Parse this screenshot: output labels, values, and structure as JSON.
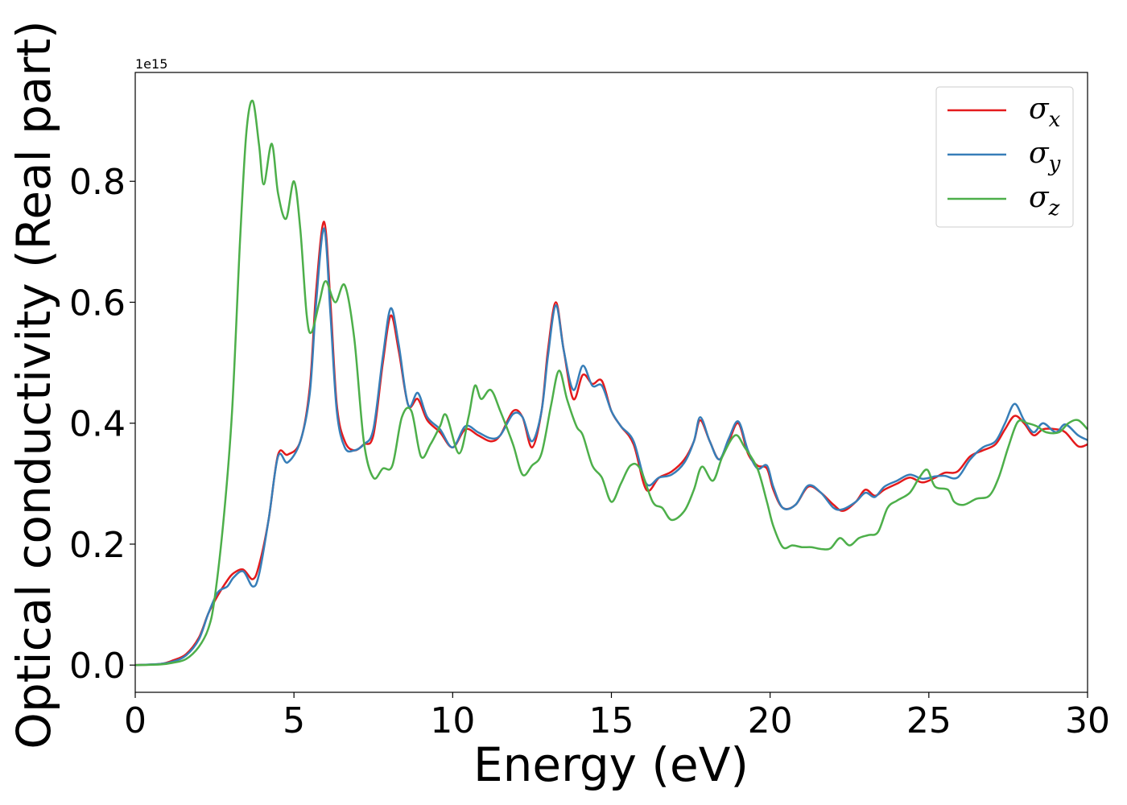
{
  "chart_data": {
    "type": "line",
    "title": "",
    "xlabel": "Energy (eV)",
    "ylabel": "Optical conductivity (Real part)",
    "y_offset_text": "1e15",
    "xlim": [
      0,
      30
    ],
    "ylim": [
      -0.045,
      0.98
    ],
    "y_scale_factor": 1000000000000000.0,
    "xticks": [
      0,
      5,
      10,
      15,
      20,
      25,
      30
    ],
    "xtick_labels": [
      "0",
      "5",
      "10",
      "15",
      "20",
      "25",
      "30"
    ],
    "yticks": [
      0.0,
      0.2,
      0.4,
      0.6,
      0.8
    ],
    "ytick_labels": [
      "0.0",
      "0.2",
      "0.4",
      "0.6",
      "0.8"
    ],
    "grid": false,
    "legend_position": "top-right",
    "series": [
      {
        "name": "σx",
        "symbol": "σ",
        "subscript": "x",
        "color": "#e41a1c",
        "points": [
          [
            0,
            0
          ],
          [
            0.8,
            0.002
          ],
          [
            1.2,
            0.008
          ],
          [
            1.6,
            0.018
          ],
          [
            2.0,
            0.045
          ],
          [
            2.3,
            0.085
          ],
          [
            2.6,
            0.115
          ],
          [
            2.9,
            0.14
          ],
          [
            3.1,
            0.152
          ],
          [
            3.4,
            0.158
          ],
          [
            3.7,
            0.142
          ],
          [
            3.9,
            0.165
          ],
          [
            4.2,
            0.24
          ],
          [
            4.5,
            0.348
          ],
          [
            4.8,
            0.348
          ],
          [
            5.2,
            0.37
          ],
          [
            5.5,
            0.46
          ],
          [
            5.7,
            0.62
          ],
          [
            5.95,
            0.733
          ],
          [
            6.15,
            0.6
          ],
          [
            6.35,
            0.43
          ],
          [
            6.6,
            0.37
          ],
          [
            6.9,
            0.355
          ],
          [
            7.2,
            0.365
          ],
          [
            7.5,
            0.38
          ],
          [
            7.8,
            0.5
          ],
          [
            8.05,
            0.578
          ],
          [
            8.3,
            0.52
          ],
          [
            8.6,
            0.43
          ],
          [
            8.9,
            0.44
          ],
          [
            9.2,
            0.405
          ],
          [
            9.6,
            0.385
          ],
          [
            10.0,
            0.36
          ],
          [
            10.4,
            0.39
          ],
          [
            10.8,
            0.38
          ],
          [
            11.2,
            0.37
          ],
          [
            11.5,
            0.38
          ],
          [
            11.9,
            0.42
          ],
          [
            12.2,
            0.41
          ],
          [
            12.5,
            0.36
          ],
          [
            12.8,
            0.42
          ],
          [
            13.0,
            0.52
          ],
          [
            13.25,
            0.6
          ],
          [
            13.5,
            0.52
          ],
          [
            13.8,
            0.44
          ],
          [
            14.1,
            0.48
          ],
          [
            14.4,
            0.465
          ],
          [
            14.7,
            0.47
          ],
          [
            15.0,
            0.42
          ],
          [
            15.3,
            0.395
          ],
          [
            15.7,
            0.365
          ],
          [
            16.1,
            0.29
          ],
          [
            16.5,
            0.31
          ],
          [
            16.9,
            0.32
          ],
          [
            17.3,
            0.34
          ],
          [
            17.6,
            0.37
          ],
          [
            17.8,
            0.405
          ],
          [
            18.1,
            0.37
          ],
          [
            18.4,
            0.34
          ],
          [
            18.7,
            0.37
          ],
          [
            19.0,
            0.4
          ],
          [
            19.3,
            0.35
          ],
          [
            19.6,
            0.33
          ],
          [
            19.9,
            0.325
          ],
          [
            20.1,
            0.29
          ],
          [
            20.4,
            0.26
          ],
          [
            20.8,
            0.265
          ],
          [
            21.2,
            0.295
          ],
          [
            21.6,
            0.285
          ],
          [
            22.0,
            0.265
          ],
          [
            22.3,
            0.255
          ],
          [
            22.7,
            0.27
          ],
          [
            23.0,
            0.29
          ],
          [
            23.3,
            0.28
          ],
          [
            23.6,
            0.29
          ],
          [
            24.0,
            0.3
          ],
          [
            24.4,
            0.31
          ],
          [
            24.8,
            0.302
          ],
          [
            25.2,
            0.31
          ],
          [
            25.5,
            0.318
          ],
          [
            25.9,
            0.32
          ],
          [
            26.3,
            0.345
          ],
          [
            26.7,
            0.355
          ],
          [
            27.1,
            0.365
          ],
          [
            27.4,
            0.39
          ],
          [
            27.7,
            0.412
          ],
          [
            28.0,
            0.4
          ],
          [
            28.3,
            0.38
          ],
          [
            28.6,
            0.39
          ],
          [
            29.0,
            0.39
          ],
          [
            29.3,
            0.385
          ],
          [
            29.7,
            0.362
          ],
          [
            30.0,
            0.365
          ]
        ]
      },
      {
        "name": "σy",
        "symbol": "σ",
        "subscript": "y",
        "color": "#377eb8",
        "points": [
          [
            0,
            0
          ],
          [
            0.8,
            0.002
          ],
          [
            1.2,
            0.006
          ],
          [
            1.6,
            0.016
          ],
          [
            2.0,
            0.042
          ],
          [
            2.3,
            0.085
          ],
          [
            2.6,
            0.12
          ],
          [
            2.9,
            0.13
          ],
          [
            3.1,
            0.145
          ],
          [
            3.4,
            0.155
          ],
          [
            3.7,
            0.13
          ],
          [
            3.9,
            0.15
          ],
          [
            4.2,
            0.24
          ],
          [
            4.5,
            0.345
          ],
          [
            4.8,
            0.335
          ],
          [
            5.2,
            0.37
          ],
          [
            5.5,
            0.45
          ],
          [
            5.7,
            0.6
          ],
          [
            5.95,
            0.722
          ],
          [
            6.15,
            0.58
          ],
          [
            6.35,
            0.42
          ],
          [
            6.6,
            0.36
          ],
          [
            6.9,
            0.355
          ],
          [
            7.2,
            0.365
          ],
          [
            7.5,
            0.39
          ],
          [
            7.8,
            0.51
          ],
          [
            8.05,
            0.59
          ],
          [
            8.3,
            0.53
          ],
          [
            8.6,
            0.43
          ],
          [
            8.9,
            0.45
          ],
          [
            9.2,
            0.41
          ],
          [
            9.6,
            0.39
          ],
          [
            10.0,
            0.36
          ],
          [
            10.4,
            0.395
          ],
          [
            10.8,
            0.385
          ],
          [
            11.2,
            0.375
          ],
          [
            11.5,
            0.38
          ],
          [
            11.9,
            0.415
          ],
          [
            12.2,
            0.41
          ],
          [
            12.5,
            0.37
          ],
          [
            12.8,
            0.42
          ],
          [
            13.0,
            0.51
          ],
          [
            13.25,
            0.595
          ],
          [
            13.5,
            0.52
          ],
          [
            13.8,
            0.455
          ],
          [
            14.1,
            0.495
          ],
          [
            14.4,
            0.462
          ],
          [
            14.7,
            0.462
          ],
          [
            15.0,
            0.42
          ],
          [
            15.3,
            0.395
          ],
          [
            15.7,
            0.37
          ],
          [
            16.1,
            0.3
          ],
          [
            16.5,
            0.31
          ],
          [
            16.9,
            0.315
          ],
          [
            17.3,
            0.335
          ],
          [
            17.6,
            0.37
          ],
          [
            17.8,
            0.41
          ],
          [
            18.1,
            0.37
          ],
          [
            18.4,
            0.34
          ],
          [
            18.7,
            0.375
          ],
          [
            19.0,
            0.403
          ],
          [
            19.3,
            0.355
          ],
          [
            19.6,
            0.325
          ],
          [
            19.9,
            0.33
          ],
          [
            20.1,
            0.295
          ],
          [
            20.4,
            0.26
          ],
          [
            20.8,
            0.265
          ],
          [
            21.2,
            0.297
          ],
          [
            21.6,
            0.285
          ],
          [
            22.0,
            0.26
          ],
          [
            22.3,
            0.258
          ],
          [
            22.7,
            0.27
          ],
          [
            23.0,
            0.285
          ],
          [
            23.3,
            0.278
          ],
          [
            23.6,
            0.295
          ],
          [
            24.0,
            0.305
          ],
          [
            24.4,
            0.315
          ],
          [
            24.8,
            0.308
          ],
          [
            25.2,
            0.312
          ],
          [
            25.5,
            0.313
          ],
          [
            25.9,
            0.31
          ],
          [
            26.3,
            0.34
          ],
          [
            26.7,
            0.36
          ],
          [
            27.1,
            0.37
          ],
          [
            27.4,
            0.4
          ],
          [
            27.7,
            0.432
          ],
          [
            28.0,
            0.405
          ],
          [
            28.3,
            0.385
          ],
          [
            28.6,
            0.4
          ],
          [
            29.0,
            0.385
          ],
          [
            29.3,
            0.398
          ],
          [
            29.7,
            0.38
          ],
          [
            30.0,
            0.372
          ]
        ]
      },
      {
        "name": "σz",
        "symbol": "σ",
        "subscript": "z",
        "color": "#4daf4a",
        "points": [
          [
            0,
            0
          ],
          [
            0.8,
            0.001
          ],
          [
            1.2,
            0.004
          ],
          [
            1.6,
            0.01
          ],
          [
            2.0,
            0.03
          ],
          [
            2.3,
            0.06
          ],
          [
            2.5,
            0.11
          ],
          [
            2.8,
            0.25
          ],
          [
            3.05,
            0.42
          ],
          [
            3.3,
            0.7
          ],
          [
            3.5,
            0.88
          ],
          [
            3.7,
            0.933
          ],
          [
            3.9,
            0.86
          ],
          [
            4.05,
            0.795
          ],
          [
            4.3,
            0.862
          ],
          [
            4.5,
            0.78
          ],
          [
            4.75,
            0.738
          ],
          [
            5.0,
            0.8
          ],
          [
            5.2,
            0.72
          ],
          [
            5.4,
            0.58
          ],
          [
            5.55,
            0.55
          ],
          [
            5.8,
            0.6
          ],
          [
            6.0,
            0.635
          ],
          [
            6.3,
            0.6
          ],
          [
            6.6,
            0.628
          ],
          [
            6.9,
            0.54
          ],
          [
            7.2,
            0.37
          ],
          [
            7.5,
            0.31
          ],
          [
            7.8,
            0.325
          ],
          [
            8.1,
            0.33
          ],
          [
            8.4,
            0.41
          ],
          [
            8.7,
            0.42
          ],
          [
            9.0,
            0.345
          ],
          [
            9.3,
            0.365
          ],
          [
            9.6,
            0.395
          ],
          [
            9.8,
            0.413
          ],
          [
            10.2,
            0.35
          ],
          [
            10.5,
            0.41
          ],
          [
            10.7,
            0.462
          ],
          [
            10.9,
            0.44
          ],
          [
            11.2,
            0.455
          ],
          [
            11.5,
            0.42
          ],
          [
            11.9,
            0.365
          ],
          [
            12.2,
            0.315
          ],
          [
            12.5,
            0.33
          ],
          [
            12.8,
            0.35
          ],
          [
            13.1,
            0.43
          ],
          [
            13.35,
            0.487
          ],
          [
            13.6,
            0.44
          ],
          [
            13.9,
            0.395
          ],
          [
            14.1,
            0.38
          ],
          [
            14.4,
            0.33
          ],
          [
            14.7,
            0.31
          ],
          [
            15.0,
            0.27
          ],
          [
            15.3,
            0.3
          ],
          [
            15.6,
            0.33
          ],
          [
            15.9,
            0.325
          ],
          [
            16.3,
            0.27
          ],
          [
            16.6,
            0.26
          ],
          [
            16.9,
            0.24
          ],
          [
            17.3,
            0.255
          ],
          [
            17.6,
            0.29
          ],
          [
            17.85,
            0.328
          ],
          [
            18.2,
            0.305
          ],
          [
            18.5,
            0.345
          ],
          [
            18.9,
            0.38
          ],
          [
            19.2,
            0.36
          ],
          [
            19.6,
            0.325
          ],
          [
            19.9,
            0.27
          ],
          [
            20.1,
            0.23
          ],
          [
            20.4,
            0.195
          ],
          [
            20.7,
            0.198
          ],
          [
            21.0,
            0.195
          ],
          [
            21.3,
            0.195
          ],
          [
            21.6,
            0.192
          ],
          [
            21.9,
            0.193
          ],
          [
            22.2,
            0.21
          ],
          [
            22.5,
            0.198
          ],
          [
            22.8,
            0.21
          ],
          [
            23.1,
            0.215
          ],
          [
            23.4,
            0.22
          ],
          [
            23.7,
            0.26
          ],
          [
            24.0,
            0.272
          ],
          [
            24.4,
            0.285
          ],
          [
            24.7,
            0.31
          ],
          [
            24.95,
            0.323
          ],
          [
            25.2,
            0.295
          ],
          [
            25.6,
            0.29
          ],
          [
            25.8,
            0.27
          ],
          [
            26.1,
            0.265
          ],
          [
            26.5,
            0.275
          ],
          [
            26.9,
            0.28
          ],
          [
            27.2,
            0.31
          ],
          [
            27.5,
            0.36
          ],
          [
            27.8,
            0.402
          ],
          [
            28.1,
            0.4
          ],
          [
            28.4,
            0.395
          ],
          [
            28.7,
            0.385
          ],
          [
            29.1,
            0.385
          ],
          [
            29.4,
            0.4
          ],
          [
            29.7,
            0.405
          ],
          [
            30.0,
            0.39
          ]
        ]
      }
    ]
  }
}
